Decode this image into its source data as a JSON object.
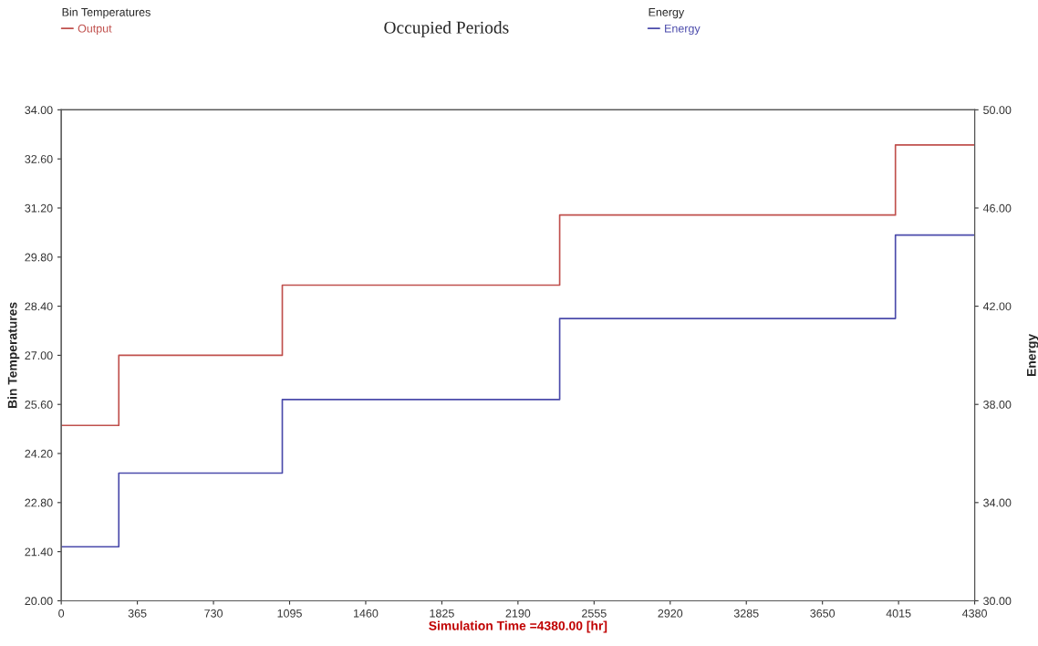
{
  "chart_data": {
    "type": "step",
    "title": "Occupied Periods",
    "xlabel": "Simulation Time =4380.00 [hr]",
    "ylabel": "Bin Temperatures",
    "y2label": "Energy",
    "annotations": [
      "Bin Temperatures",
      "Energy"
    ],
    "x": [
      0,
      276,
      1060,
      2390,
      4000,
      4380
    ],
    "series": [
      {
        "name": "Output",
        "color": "#c0504d",
        "values": [
          25,
          27,
          29,
          31,
          33,
          33
        ]
      },
      {
        "name": "Energy",
        "color": "#4b4bab",
        "axis": "y2",
        "values": [
          32.2,
          35.2,
          38.2,
          41.5,
          44.9,
          44.9
        ]
      }
    ],
    "xlim": [
      0,
      4380
    ],
    "xticks": [
      0,
      365,
      730,
      1095,
      1460,
      1825,
      2190,
      2555,
      2920,
      3285,
      3650,
      4015,
      4380
    ],
    "ylim": [
      20,
      34
    ],
    "yticks": [
      {
        "value": 20,
        "label": "20.00"
      },
      {
        "value": 21.4,
        "label": "21.40"
      },
      {
        "value": 22.8,
        "label": "22.80"
      },
      {
        "value": 24.2,
        "label": "24.20"
      },
      {
        "value": 25.6,
        "label": "25.60"
      },
      {
        "value": 27,
        "label": "27.00"
      },
      {
        "value": 28.4,
        "label": "28.40"
      },
      {
        "value": 29.8,
        "label": "29.80"
      },
      {
        "value": 31.2,
        "label": "31.20"
      },
      {
        "value": 32.6,
        "label": "32.60"
      },
      {
        "value": 34,
        "label": "34.00"
      }
    ],
    "y2lim": [
      30,
      50
    ],
    "y2ticks": [
      {
        "value": 30,
        "label": "30.00"
      },
      {
        "value": 34,
        "label": "34.00"
      },
      {
        "value": 38,
        "label": "38.00"
      },
      {
        "value": 42,
        "label": "42.00"
      },
      {
        "value": 46,
        "label": "46.00"
      },
      {
        "value": 50,
        "label": "50.00"
      }
    ],
    "grid": false,
    "legend": "top"
  }
}
